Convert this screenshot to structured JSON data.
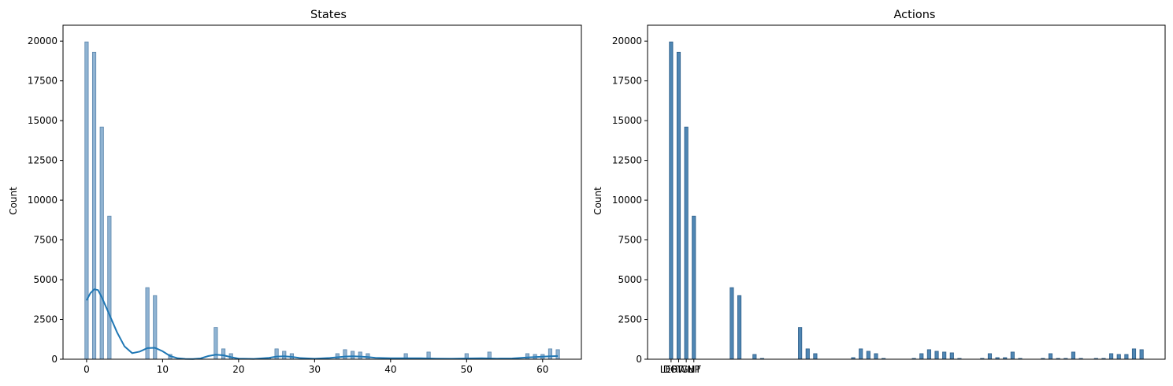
{
  "chart_data": [
    {
      "type": "bar",
      "title": "States",
      "xlabel": "",
      "ylabel": "Count",
      "xlim": [
        -3.1,
        65.1
      ],
      "ylim": [
        0,
        21000
      ],
      "xticks": [
        0,
        10,
        20,
        30,
        40,
        50,
        60
      ],
      "yticks": [
        0,
        2500,
        5000,
        7500,
        10000,
        12500,
        15000,
        17500,
        20000
      ],
      "bar_width": 0.45,
      "bar_color": "#8fb3d2",
      "bar_edge": "#5b86ad",
      "kde_color": "#1f77b4",
      "bars": [
        [
          0,
          19950
        ],
        [
          1,
          19300
        ],
        [
          2,
          14600
        ],
        [
          3,
          9000
        ],
        [
          8,
          4500
        ],
        [
          9,
          4000
        ],
        [
          11,
          300
        ],
        [
          17,
          2000
        ],
        [
          18,
          650
        ],
        [
          19,
          350
        ],
        [
          24,
          100
        ],
        [
          25,
          650
        ],
        [
          26,
          500
        ],
        [
          27,
          350
        ],
        [
          33,
          350
        ],
        [
          34,
          600
        ],
        [
          35,
          500
        ],
        [
          36,
          450
        ],
        [
          37,
          350
        ],
        [
          42,
          350
        ],
        [
          45,
          450
        ],
        [
          50,
          350
        ],
        [
          53,
          450
        ],
        [
          58,
          350
        ],
        [
          59,
          300
        ],
        [
          60,
          300
        ],
        [
          61,
          650
        ],
        [
          62,
          600
        ]
      ],
      "kde": [
        [
          0,
          3700
        ],
        [
          0.5,
          4150
        ],
        [
          1,
          4400
        ],
        [
          1.5,
          4350
        ],
        [
          2,
          3900
        ],
        [
          3,
          2800
        ],
        [
          4,
          1700
        ],
        [
          5,
          800
        ],
        [
          6,
          380
        ],
        [
          7,
          480
        ],
        [
          8,
          700
        ],
        [
          9,
          720
        ],
        [
          10,
          500
        ],
        [
          11,
          200
        ],
        [
          12,
          60
        ],
        [
          13,
          20
        ],
        [
          14,
          10
        ],
        [
          15,
          50
        ],
        [
          16,
          200
        ],
        [
          17,
          280
        ],
        [
          18,
          250
        ],
        [
          19,
          130
        ],
        [
          20,
          40
        ],
        [
          22,
          20
        ],
        [
          24,
          90
        ],
        [
          25,
          170
        ],
        [
          26,
          190
        ],
        [
          27,
          150
        ],
        [
          28,
          80
        ],
        [
          30,
          30
        ],
        [
          32,
          80
        ],
        [
          34,
          170
        ],
        [
          35,
          190
        ],
        [
          36,
          170
        ],
        [
          37,
          140
        ],
        [
          38,
          90
        ],
        [
          40,
          60
        ],
        [
          42,
          60
        ],
        [
          44,
          60
        ],
        [
          46,
          40
        ],
        [
          48,
          30
        ],
        [
          50,
          50
        ],
        [
          52,
          60
        ],
        [
          54,
          40
        ],
        [
          56,
          50
        ],
        [
          58,
          110
        ],
        [
          60,
          160
        ],
        [
          61,
          190
        ],
        [
          62,
          200
        ]
      ]
    },
    {
      "type": "bar",
      "title": "Actions",
      "xlabel": "",
      "ylabel": "Count",
      "xlim": [
        -3.1,
        65.1
      ],
      "ylim": [
        0,
        21000
      ],
      "xtick_positions": [
        0,
        1,
        2,
        3
      ],
      "xtick_labels": [
        "LEFT",
        "DOWN",
        "RIGHT",
        "UP"
      ],
      "yticks": [
        0,
        2500,
        5000,
        7500,
        10000,
        12500,
        15000,
        17500,
        20000
      ],
      "bar_width": 0.45,
      "bar_color": "#4f86b3",
      "bar_edge": "#2f5f8a",
      "bars": [
        [
          0,
          19950
        ],
        [
          1,
          19300
        ],
        [
          2,
          14600
        ],
        [
          3,
          9000
        ],
        [
          8,
          4500
        ],
        [
          9,
          4000
        ],
        [
          11,
          300
        ],
        [
          12,
          50
        ],
        [
          17,
          2000
        ],
        [
          18,
          650
        ],
        [
          19,
          350
        ],
        [
          24,
          100
        ],
        [
          25,
          650
        ],
        [
          26,
          500
        ],
        [
          27,
          350
        ],
        [
          28,
          50
        ],
        [
          32,
          50
        ],
        [
          33,
          350
        ],
        [
          34,
          600
        ],
        [
          35,
          500
        ],
        [
          36,
          450
        ],
        [
          37,
          400
        ],
        [
          38,
          50
        ],
        [
          41,
          50
        ],
        [
          42,
          350
        ],
        [
          43,
          100
        ],
        [
          44,
          100
        ],
        [
          45,
          450
        ],
        [
          46,
          50
        ],
        [
          49,
          50
        ],
        [
          50,
          350
        ],
        [
          51,
          50
        ],
        [
          52,
          50
        ],
        [
          53,
          450
        ],
        [
          54,
          50
        ],
        [
          56,
          50
        ],
        [
          57,
          50
        ],
        [
          58,
          350
        ],
        [
          59,
          300
        ],
        [
          60,
          300
        ],
        [
          61,
          650
        ],
        [
          62,
          600
        ]
      ]
    }
  ]
}
